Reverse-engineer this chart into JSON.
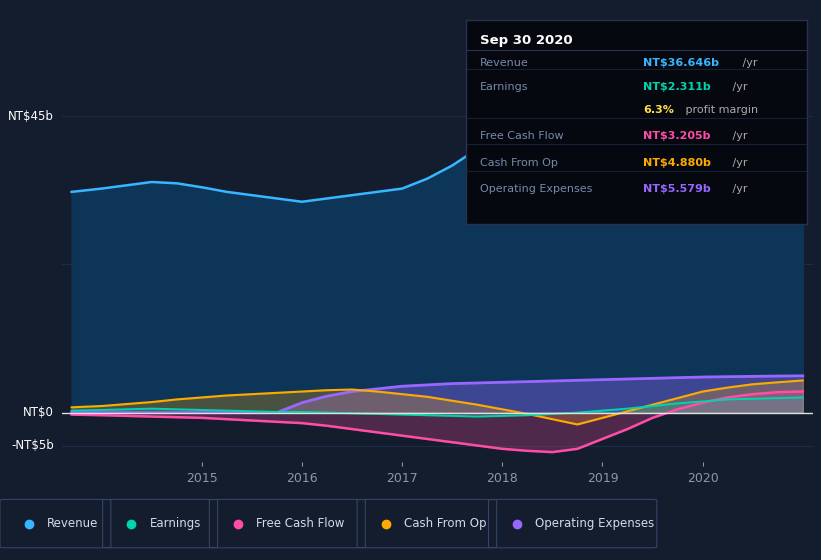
{
  "background_color": "#131d2e",
  "plot_bg_color": "#131d2e",
  "ylim": [
    -7.5,
    52
  ],
  "xlim": [
    2013.6,
    2021.1
  ],
  "xtick_labels": [
    "2015",
    "2016",
    "2017",
    "2018",
    "2019",
    "2020"
  ],
  "xtick_positions": [
    2015,
    2016,
    2017,
    2018,
    2019,
    2020
  ],
  "grid_color": "#1e3050",
  "revenue_fill_color": "#0d3558",
  "revenue_line_color": "#38b6ff",
  "earnings_color": "#00d4aa",
  "fcf_color": "#ff4da6",
  "cashop_color": "#ffaa00",
  "opex_color": "#9966ff",
  "zero_line_color": "#e0e0e0",
  "text_color": "#8899aa",
  "tick_color": "#8899aa",
  "Revenue_x": [
    2013.7,
    2014.0,
    2014.25,
    2014.5,
    2014.75,
    2015.0,
    2015.25,
    2015.5,
    2015.75,
    2016.0,
    2016.25,
    2016.5,
    2016.75,
    2017.0,
    2017.25,
    2017.5,
    2017.75,
    2018.0,
    2018.25,
    2018.5,
    2018.75,
    2019.0,
    2019.25,
    2019.5,
    2019.75,
    2020.0,
    2020.25,
    2020.5,
    2020.75,
    2021.0
  ],
  "Revenue_y": [
    33.5,
    34.0,
    34.5,
    35.0,
    34.8,
    34.2,
    33.5,
    33.0,
    32.5,
    32.0,
    32.5,
    33.0,
    33.5,
    34.0,
    35.5,
    37.5,
    40.0,
    42.5,
    44.5,
    45.5,
    44.0,
    42.0,
    40.5,
    39.5,
    38.5,
    38.0,
    37.0,
    35.0,
    33.5,
    36.6
  ],
  "Earnings_x": [
    2013.7,
    2014.0,
    2014.25,
    2014.5,
    2014.75,
    2015.0,
    2015.25,
    2015.5,
    2015.75,
    2016.0,
    2016.25,
    2016.5,
    2016.75,
    2017.0,
    2017.25,
    2017.5,
    2017.75,
    2018.0,
    2018.25,
    2018.5,
    2018.75,
    2019.0,
    2019.25,
    2019.5,
    2019.75,
    2020.0,
    2020.25,
    2020.5,
    2020.75,
    2021.0
  ],
  "Earnings_y": [
    0.3,
    0.4,
    0.5,
    0.6,
    0.5,
    0.4,
    0.3,
    0.2,
    0.1,
    0.1,
    0.0,
    -0.1,
    -0.2,
    -0.3,
    -0.4,
    -0.5,
    -0.6,
    -0.5,
    -0.4,
    -0.2,
    0.0,
    0.3,
    0.6,
    1.0,
    1.4,
    1.7,
    2.0,
    2.1,
    2.2,
    2.311
  ],
  "FCF_x": [
    2013.7,
    2014.0,
    2014.25,
    2014.5,
    2014.75,
    2015.0,
    2015.25,
    2015.5,
    2015.75,
    2016.0,
    2016.25,
    2016.5,
    2016.75,
    2017.0,
    2017.25,
    2017.5,
    2017.75,
    2018.0,
    2018.25,
    2018.5,
    2018.75,
    2019.0,
    2019.25,
    2019.5,
    2019.75,
    2020.0,
    2020.25,
    2020.5,
    2020.75,
    2021.0
  ],
  "FCF_y": [
    -0.3,
    -0.4,
    -0.5,
    -0.6,
    -0.7,
    -0.8,
    -1.0,
    -1.2,
    -1.4,
    -1.6,
    -2.0,
    -2.5,
    -3.0,
    -3.5,
    -4.0,
    -4.5,
    -5.0,
    -5.5,
    -5.8,
    -6.0,
    -5.5,
    -4.0,
    -2.5,
    -0.8,
    0.5,
    1.5,
    2.3,
    2.8,
    3.1,
    3.205
  ],
  "CashOp_x": [
    2013.7,
    2014.0,
    2014.25,
    2014.5,
    2014.75,
    2015.0,
    2015.25,
    2015.5,
    2015.75,
    2016.0,
    2016.25,
    2016.5,
    2016.75,
    2017.0,
    2017.25,
    2017.5,
    2017.75,
    2018.0,
    2018.25,
    2018.5,
    2018.75,
    2019.0,
    2019.25,
    2019.5,
    2019.75,
    2020.0,
    2020.25,
    2020.5,
    2020.75,
    2021.0
  ],
  "CashOp_y": [
    0.8,
    1.0,
    1.3,
    1.6,
    2.0,
    2.3,
    2.6,
    2.8,
    3.0,
    3.2,
    3.4,
    3.5,
    3.2,
    2.8,
    2.4,
    1.8,
    1.2,
    0.5,
    -0.2,
    -1.0,
    -1.8,
    -0.8,
    0.2,
    1.2,
    2.2,
    3.2,
    3.8,
    4.3,
    4.6,
    4.88
  ],
  "OpEx_x": [
    2013.7,
    2014.0,
    2014.25,
    2014.5,
    2014.75,
    2015.0,
    2015.25,
    2015.5,
    2015.75,
    2016.0,
    2016.25,
    2016.5,
    2016.75,
    2017.0,
    2017.25,
    2017.5,
    2017.75,
    2018.0,
    2018.25,
    2018.5,
    2018.75,
    2019.0,
    2019.25,
    2019.5,
    2019.75,
    2020.0,
    2020.25,
    2020.5,
    2020.75,
    2021.0
  ],
  "OpEx_y": [
    0.0,
    0.0,
    0.0,
    0.0,
    0.0,
    0.0,
    0.0,
    0.0,
    0.0,
    1.5,
    2.5,
    3.2,
    3.6,
    4.0,
    4.2,
    4.4,
    4.5,
    4.6,
    4.7,
    4.8,
    4.9,
    5.0,
    5.1,
    5.2,
    5.3,
    5.4,
    5.45,
    5.5,
    5.55,
    5.579
  ],
  "info_box_title": "Sep 30 2020",
  "info_box_rows": [
    {
      "label": "Revenue",
      "value": "NT$36.646b",
      "unit": "/yr",
      "value_color": "#38b6ff"
    },
    {
      "label": "Earnings",
      "value": "NT$2.311b",
      "unit": "/yr",
      "value_color": "#00d4aa"
    },
    {
      "label": "",
      "value": "6.3%",
      "unit": "profit margin",
      "value_color": "#ffdd44"
    },
    {
      "label": "Free Cash Flow",
      "value": "NT$3.205b",
      "unit": "/yr",
      "value_color": "#ff4da6"
    },
    {
      "label": "Cash From Op",
      "value": "NT$4.880b",
      "unit": "/yr",
      "value_color": "#ffaa00"
    },
    {
      "label": "Operating Expenses",
      "value": "NT$5.579b",
      "unit": "/yr",
      "value_color": "#9966ff"
    }
  ],
  "legend_items": [
    {
      "label": "Revenue",
      "color": "#38b6ff"
    },
    {
      "label": "Earnings",
      "color": "#00d4aa"
    },
    {
      "label": "Free Cash Flow",
      "color": "#ff4da6"
    },
    {
      "label": "Cash From Op",
      "color": "#ffaa00"
    },
    {
      "label": "Operating Expenses",
      "color": "#9966ff"
    }
  ]
}
